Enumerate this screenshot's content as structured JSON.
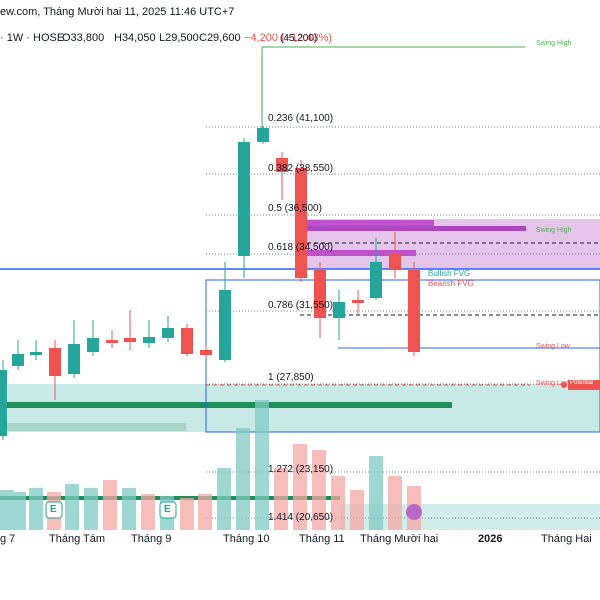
{
  "header": {
    "timestamp_line": "ew.com, Tháng Mười hai 11, 2025 11:46 UTC+7",
    "symbol_line": "· 1W · HOSE",
    "open": "O33,800",
    "high": "H34,050",
    "low": "L29,500",
    "close": "C29,600",
    "change": "−4,200 (−12.43%)"
  },
  "fib_levels": [
    {
      "label": "(45,200)"
    },
    {
      "label": "0.236 (41,100)"
    },
    {
      "label": "0.382 (38,550)"
    },
    {
      "label": "0.5 (36,500)"
    },
    {
      "label": "0.618 (34,500)"
    },
    {
      "label": "0.786 (31,550)"
    },
    {
      "label": "1 (27,850)"
    },
    {
      "label": "1.272 (23,150)"
    },
    {
      "label": "1.414 (20,650)"
    }
  ],
  "annotations": {
    "swing_high_top": "Swing High",
    "swing_high_mid": "Swing High",
    "swing_low_mid": "Swing Low",
    "swing_low_bottom": "Swing Low",
    "potential": "Potential",
    "bullish_fvg": "Bullish FVG",
    "bearish_fvg": "Bearish FVG"
  },
  "event_badges": [
    "E",
    "E"
  ],
  "time_axis": [
    "g 7",
    "Tháng Tám",
    "Tháng 9",
    "Tháng 10",
    "Tháng 11",
    "Tháng Mười hai",
    "2026",
    "Tháng Hai"
  ],
  "colors": {
    "up": "#26a69a",
    "down": "#ef5350",
    "fvg": "#e1bee7",
    "fvg_border": "#ab47bc",
    "zone": "#b2dfdb"
  }
}
